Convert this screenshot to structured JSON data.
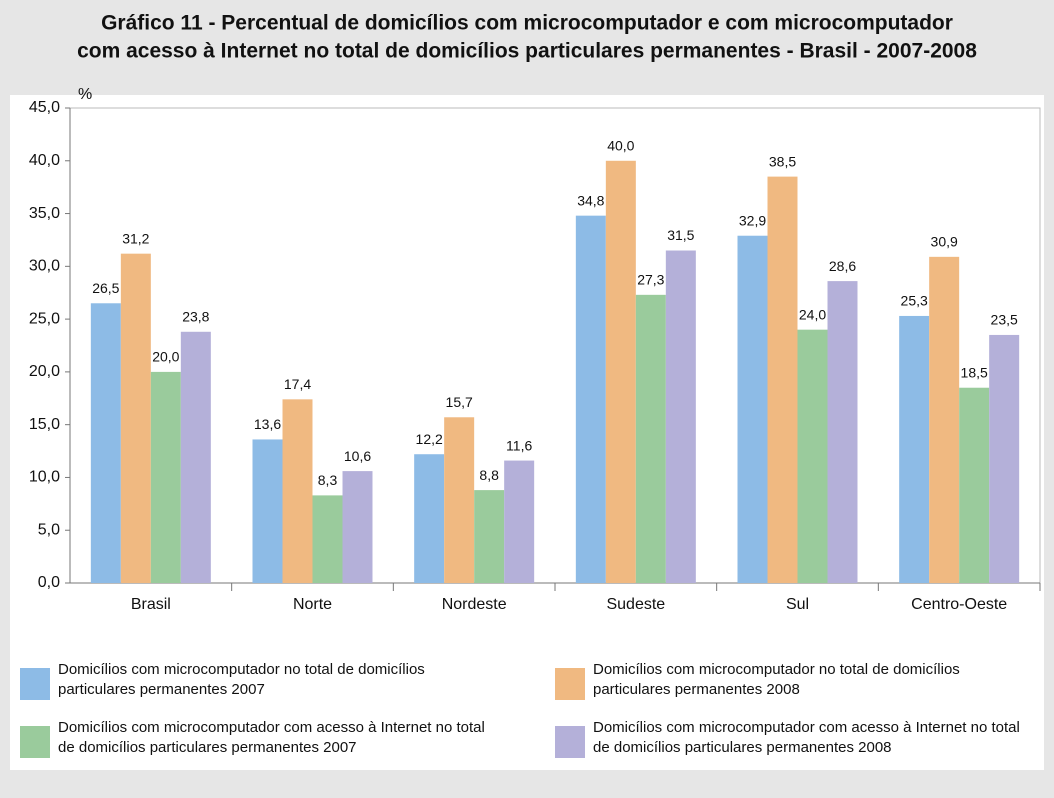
{
  "chart_data": {
    "type": "bar",
    "title": [
      "Gráfico 11 - Percentual de domicílios com microcomputador e com microcomputador",
      "com acesso à Internet no total de domicílios particulares permanentes - Brasil - 2007-2008"
    ],
    "y_label": "%",
    "categories": [
      "Brasil",
      "Norte",
      "Nordeste",
      "Sudeste",
      "Sul",
      "Centro-Oeste"
    ],
    "series": [
      {
        "name": "Domicílios com microcomputador no total de domicílios particulares permanentes 2007",
        "color": "#8dbbe6",
        "values": [
          26.5,
          13.6,
          12.2,
          34.8,
          32.9,
          25.3
        ],
        "value_labels": [
          "26,5",
          "13,6",
          "12,2",
          "34,8",
          "32,9",
          "25,3"
        ]
      },
      {
        "name": "Domicílios com microcomputador no total de domicílios particulares permanentes 2008",
        "color": "#f0b981",
        "values": [
          31.2,
          17.4,
          15.7,
          40.0,
          38.5,
          30.9
        ],
        "value_labels": [
          "31,2",
          "17,4",
          "15,7",
          "40,0",
          "38,5",
          "30,9"
        ]
      },
      {
        "name": "Domicílios com microcomputador com acesso à Internet no total de domicílios particulares permanentes 2007",
        "color": "#9acb9c",
        "values": [
          20.0,
          8.3,
          8.8,
          27.3,
          24.0,
          18.5
        ],
        "value_labels": [
          "20,0",
          "8,3",
          "8,8",
          "27,3",
          "24,0",
          "18,5"
        ]
      },
      {
        "name": "Domicílios com microcomputador com acesso à Internet no total de domicílios particulares permanentes 2008",
        "color": "#b4b0d9",
        "values": [
          23.8,
          10.6,
          11.6,
          31.5,
          28.6,
          23.5
        ],
        "value_labels": [
          "23,8",
          "10,6",
          "11,6",
          "31,5",
          "28,6",
          "23,5"
        ]
      }
    ],
    "ylim": [
      0,
      45
    ],
    "yticks": [
      {
        "value": 0,
        "label": "0,0"
      },
      {
        "value": 5,
        "label": "5,0"
      },
      {
        "value": 10,
        "label": "10,0"
      },
      {
        "value": 15,
        "label": "15,0"
      },
      {
        "value": 20,
        "label": "20,0"
      },
      {
        "value": 25,
        "label": "25,0"
      },
      {
        "value": 30,
        "label": "30,0"
      },
      {
        "value": 35,
        "label": "35,0"
      },
      {
        "value": 40,
        "label": "40,0"
      },
      {
        "value": 45,
        "label": "45,0"
      }
    ],
    "legend": "bottom"
  }
}
